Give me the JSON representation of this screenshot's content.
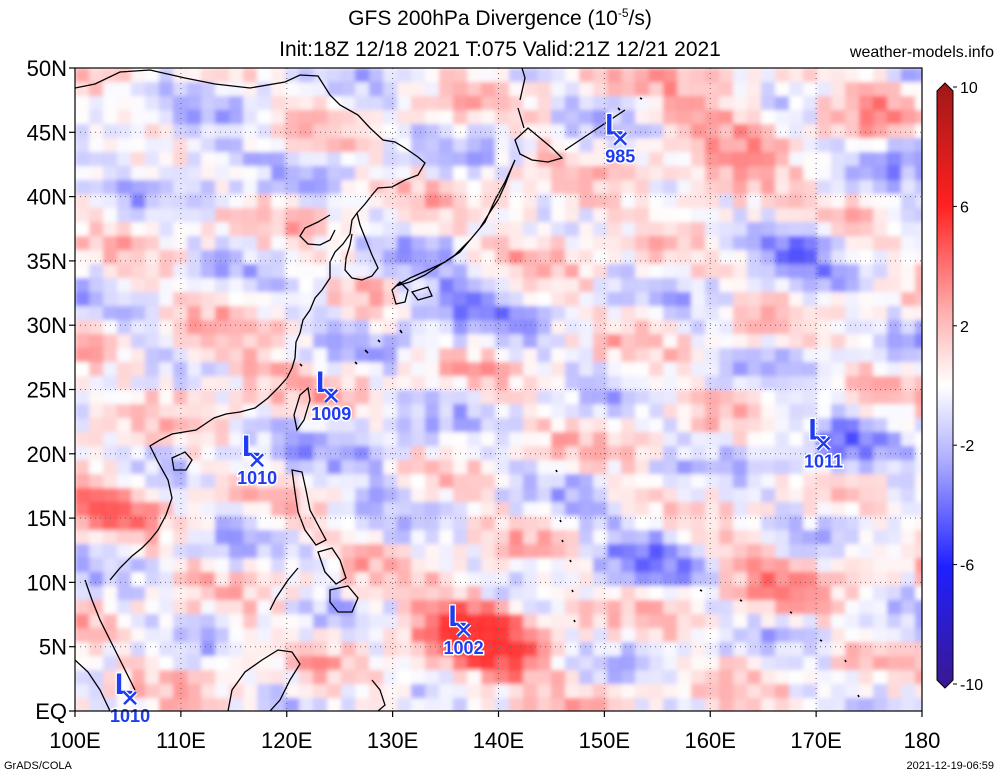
{
  "title": {
    "line1_prefix": "GFS 200hPa Divergence (10",
    "line1_exp": "-5",
    "line1_suffix": "/s)",
    "line2": "Init:18Z 12/18 2021 T:075 Valid:21Z 12/21 2021"
  },
  "site": "weather-models.info",
  "credit": "GrADS/COLA",
  "timestamp": "2021-12-19-06:59",
  "map": {
    "projection": "lat-lon",
    "lon_range": [
      100,
      180
    ],
    "lat_range": [
      0,
      50
    ],
    "lon_labels": [
      "100E",
      "110E",
      "120E",
      "130E",
      "140E",
      "150E",
      "160E",
      "170E",
      "180"
    ],
    "lat_labels": [
      "EQ",
      "5N",
      "10N",
      "15N",
      "20N",
      "25N",
      "30N",
      "35N",
      "40N",
      "45N",
      "50N"
    ],
    "grid": "dotted"
  },
  "colorbar": {
    "labels": [
      "10",
      "6",
      "2",
      "-2",
      "-6",
      "-10"
    ],
    "values": [
      10,
      6,
      2,
      -2,
      -6,
      -10
    ],
    "colors": {
      "max": "#b02020",
      "pos": "#ff2020",
      "mid": "#ffffff",
      "neg": "#2020ff",
      "min": "#3a1a9a"
    }
  },
  "lows": [
    {
      "mark": "L",
      "pressure": "985",
      "lon": 151.5,
      "lat": 44.5
    },
    {
      "mark": "L",
      "pressure": "1009",
      "lon": 124.2,
      "lat": 24.5
    },
    {
      "mark": "L",
      "pressure": "1010",
      "lon": 117.2,
      "lat": 19.5
    },
    {
      "mark": "L",
      "pressure": "1011",
      "lon": 170.7,
      "lat": 20.8
    },
    {
      "mark": "L",
      "pressure": "1002",
      "lon": 136.7,
      "lat": 6.3
    },
    {
      "mark": "L",
      "pressure": "1010",
      "lon": 105.2,
      "lat": 1.0
    }
  ],
  "field_features": [
    {
      "sign": 1,
      "lon": 136.0,
      "lat": 7.5,
      "strength": 9
    },
    {
      "sign": 1,
      "lon": 140.0,
      "lat": 4.5,
      "strength": 7
    },
    {
      "sign": 1,
      "lon": 102.0,
      "lat": 17.0,
      "strength": 6
    },
    {
      "sign": 1,
      "lon": 115.0,
      "lat": 27.0,
      "strength": 4
    },
    {
      "sign": 1,
      "lon": 162.0,
      "lat": 41.0,
      "strength": 6
    },
    {
      "sign": 1,
      "lon": 176.0,
      "lat": 47.0,
      "strength": 6
    },
    {
      "sign": 1,
      "lon": 160.0,
      "lat": 48.0,
      "strength": 5
    },
    {
      "sign": 1,
      "lon": 144.0,
      "lat": 38.0,
      "strength": 4
    },
    {
      "sign": 1,
      "lon": 166.0,
      "lat": 11.0,
      "strength": 4
    },
    {
      "sign": -1,
      "lon": 135.0,
      "lat": 32.5,
      "strength": 6
    },
    {
      "sign": -1,
      "lon": 166.0,
      "lat": 37.0,
      "strength": 6
    },
    {
      "sign": -1,
      "lon": 179.0,
      "lat": 45.0,
      "strength": 7
    },
    {
      "sign": -1,
      "lon": 127.0,
      "lat": 20.0,
      "strength": 4
    },
    {
      "sign": -1,
      "lon": 153.0,
      "lat": 13.0,
      "strength": 5
    },
    {
      "sign": -1,
      "lon": 172.0,
      "lat": 21.0,
      "strength": 4
    },
    {
      "sign": -1,
      "lon": 110.0,
      "lat": 44.0,
      "strength": 4
    }
  ]
}
